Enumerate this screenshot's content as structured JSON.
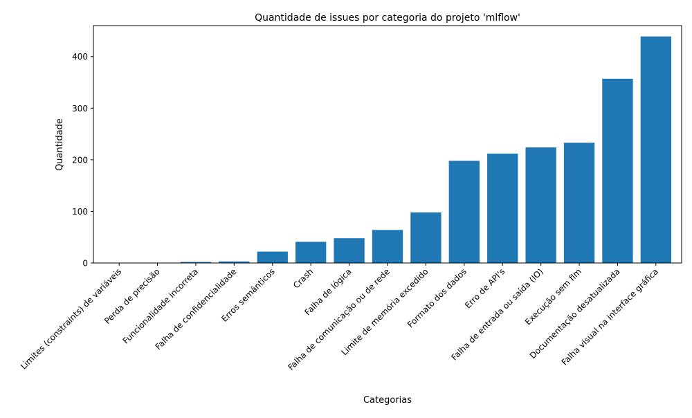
{
  "chart_data": {
    "type": "bar",
    "title": "Quantidade de issues por categoria do projeto 'mlflow'",
    "xlabel": "Categorias",
    "ylabel": "Quantidade",
    "categories": [
      "Limites (constraints) de variáveis",
      "Perda de precisão",
      "Funcionalidade incorreta",
      "Falha de confidencialidade",
      "Erros semânticos",
      "Crash",
      "Falha de lógica",
      "Falha de comunicação ou de rede",
      "Limite de memória excedido",
      "Formato dos dados",
      "Erro de API's",
      "Falha de entrada ou saída (IO)",
      "Execução sem fim",
      "Documentação desatualizada",
      "Falha visual na interface gráfica"
    ],
    "values": [
      0,
      0,
      2,
      3,
      22,
      41,
      48,
      64,
      98,
      198,
      212,
      224,
      233,
      357,
      439
    ],
    "ylim": [
      0,
      460
    ],
    "yticks": [
      0,
      100,
      200,
      300,
      400
    ],
    "bar_color": "#1f77b4",
    "grid": false,
    "legend": "none"
  }
}
